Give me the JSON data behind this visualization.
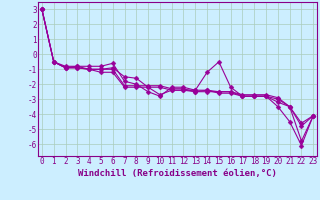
{
  "xlabel": "Windchill (Refroidissement éolien,°C)",
  "x_values": [
    0,
    1,
    2,
    3,
    4,
    5,
    6,
    7,
    8,
    9,
    10,
    11,
    12,
    13,
    14,
    15,
    16,
    17,
    18,
    19,
    20,
    21,
    22,
    23
  ],
  "series": [
    [
      3.0,
      -0.5,
      -0.8,
      -0.8,
      -0.8,
      -0.8,
      -0.6,
      -1.8,
      -2.0,
      -2.5,
      -2.8,
      -2.2,
      -2.2,
      -2.4,
      -1.2,
      -0.5,
      -2.2,
      -2.8,
      -2.8,
      -2.8,
      -3.5,
      -4.5,
      -6.1,
      -4.1
    ],
    [
      3.0,
      -0.5,
      -0.9,
      -0.8,
      -1.0,
      -1.0,
      -1.0,
      -2.1,
      -2.1,
      -2.1,
      -2.1,
      -2.3,
      -2.3,
      -2.5,
      -2.5,
      -2.5,
      -2.5,
      -2.7,
      -2.7,
      -2.7,
      -2.9,
      -3.5,
      -4.6,
      -4.1
    ],
    [
      3.0,
      -0.5,
      -0.9,
      -0.9,
      -1.0,
      -1.0,
      -0.9,
      -1.5,
      -1.6,
      -2.2,
      -2.7,
      -2.4,
      -2.4,
      -2.5,
      -2.4,
      -2.5,
      -2.5,
      -2.8,
      -2.8,
      -2.8,
      -3.2,
      -3.5,
      -5.8,
      -4.1
    ],
    [
      3.0,
      -0.5,
      -0.9,
      -0.9,
      -1.0,
      -1.2,
      -1.2,
      -2.2,
      -2.2,
      -2.2,
      -2.2,
      -2.4,
      -2.4,
      -2.4,
      -2.4,
      -2.6,
      -2.6,
      -2.8,
      -2.8,
      -2.8,
      -3.0,
      -3.5,
      -4.8,
      -4.1
    ]
  ],
  "line_color": "#990099",
  "marker": "D",
  "markersize": 2.5,
  "linewidth": 0.8,
  "bg_color": "#cceeff",
  "grid_color": "#aaccbb",
  "ylim": [
    -6.8,
    3.5
  ],
  "xlim": [
    -0.3,
    23.3
  ],
  "yticks": [
    3,
    2,
    1,
    0,
    -1,
    -2,
    -3,
    -4,
    -5,
    -6
  ],
  "xticks": [
    0,
    1,
    2,
    3,
    4,
    5,
    6,
    7,
    8,
    9,
    10,
    11,
    12,
    13,
    14,
    15,
    16,
    17,
    18,
    19,
    20,
    21,
    22,
    23
  ],
  "tick_fontsize": 5.5,
  "xlabel_fontsize": 6.5,
  "tick_color": "#880088",
  "label_color": "#880088",
  "spine_color": "#880088"
}
